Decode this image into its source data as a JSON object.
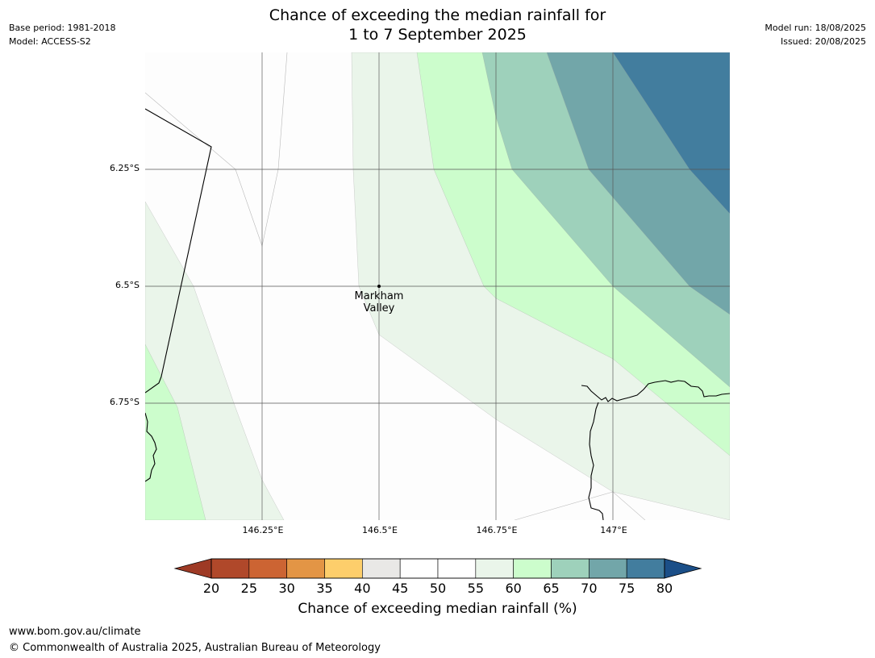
{
  "header": {
    "title_line1": "Chance of exceeding the median rainfall for",
    "title_line2": "1 to 7 September 2025",
    "base_period": "Base period: 1981-2018",
    "model": "Model: ACCESS-S2",
    "model_run": "Model run: 18/08/2025",
    "issued": "Issued: 20/08/2025"
  },
  "map": {
    "lat_labels": [
      "6.25°S",
      "6.5°S",
      "6.75°S"
    ],
    "lon_labels": [
      "146.25°E",
      "146.5°E",
      "146.75°E",
      "147°E"
    ],
    "place": {
      "name_line1": "Markham",
      "name_line2": "Valley"
    },
    "colors": {
      "c55_60": "#eaf5ea",
      "c60_65": "#ccfdcc",
      "c65_70": "#9ed1bb",
      "c70_75": "#72a6a9",
      "c75_80": "#427d9e",
      "coast": "#000000",
      "grid": "#555555"
    }
  },
  "colorbar": {
    "ticks": [
      "20",
      "25",
      "30",
      "35",
      "40",
      "45",
      "50",
      "55",
      "60",
      "65",
      "70",
      "75",
      "80"
    ],
    "colors": [
      "#b0482a",
      "#cc6433",
      "#e39545",
      "#fdce6b",
      "#e9e8e6",
      "#ffffff",
      "#ffffff",
      "#eaf5ea",
      "#ccfdcc",
      "#9ed1bb",
      "#72a6a9",
      "#427d9e"
    ],
    "under_color": "#9e3a25",
    "over_color": "#1b4f88",
    "label": "Chance of exceeding median rainfall (%)"
  },
  "footer": {
    "url": "www.bom.gov.au/climate",
    "copyright": "© Commonwealth of Australia 2025, Australian Bureau of Meteorology"
  }
}
